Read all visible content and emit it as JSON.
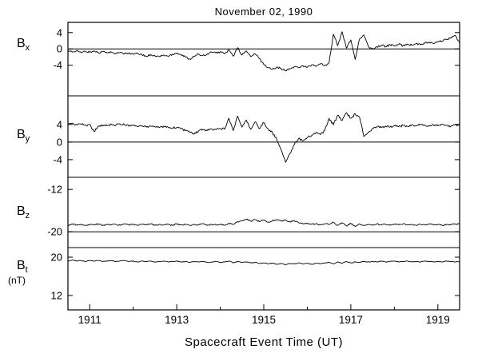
{
  "title": "November 02, 1990",
  "xlabel": "Spacecraft Event Time (UT)",
  "colors": {
    "line": "#000000",
    "background": "#ffffff"
  },
  "chart_data": {
    "type": "line",
    "title": "November 02, 1990",
    "xlabel": "Spacecraft Event Time (UT)",
    "grid": false,
    "legend": "none",
    "x": {
      "min": 1910.5,
      "max": 1919.5,
      "start": 1910.5,
      "step": 0.1
    },
    "xticks": [
      {
        "v": 1911,
        "label": "1911"
      },
      {
        "v": 1913,
        "label": "1913"
      },
      {
        "v": 1915,
        "label": "1915"
      },
      {
        "v": 1917,
        "label": "1917"
      },
      {
        "v": 1919,
        "label": "1919"
      }
    ],
    "xminor": [
      1912,
      1914,
      1916,
      1918
    ],
    "panels": [
      {
        "name": "Bx",
        "label_main": "B",
        "label_sub": "x",
        "unit_label": "",
        "ylim": [
          -11.5,
          6.5
        ],
        "yticks": [
          {
            "v": 4,
            "label": "4"
          },
          {
            "v": 0,
            "label": "0"
          },
          {
            "v": -4,
            "label": "-4"
          }
        ],
        "refline": 0,
        "noise": 0.25,
        "values": [
          -0.5,
          -0.8,
          -0.4,
          -0.9,
          -0.6,
          -0.8,
          -0.5,
          -0.9,
          -0.7,
          -1.0,
          -0.8,
          -1.1,
          -0.9,
          -1.2,
          -1.0,
          -1.3,
          -1.1,
          -1.5,
          -1.8,
          -1.4,
          -1.7,
          -1.9,
          -1.5,
          -1.8,
          -1.3,
          -1.0,
          -1.4,
          -2.0,
          -2.5,
          -1.8,
          -1.3,
          -1.6,
          -1.2,
          -0.8,
          -1.0,
          -0.7,
          -1.2,
          -0.3,
          -1.8,
          0.3,
          -1.5,
          -0.5,
          -1.9,
          -1.2,
          -2.4,
          -3.8,
          -4.6,
          -5.0,
          -4.4,
          -4.8,
          -5.4,
          -4.9,
          -4.3,
          -4.6,
          -4.1,
          -4.5,
          -3.9,
          -4.3,
          -3.7,
          -4.1,
          -3.4,
          3.6,
          0.8,
          4.2,
          0.2,
          2.2,
          -2.6,
          2.4,
          3.4,
          0.6,
          0.1,
          0.5,
          0.9,
          0.6,
          1.0,
          0.7,
          1.1,
          0.8,
          1.2,
          0.9,
          1.3,
          1.0,
          1.4,
          1.6,
          1.3,
          1.7,
          1.9,
          2.3,
          2.8,
          3.3,
          1.5
        ]
      },
      {
        "name": "By",
        "label_main": "B",
        "label_sub": "y",
        "unit_label": "",
        "ylim": [
          -8.0,
          10.5
        ],
        "yticks": [
          {
            "v": 4,
            "label": "4"
          },
          {
            "v": 0,
            "label": "0"
          },
          {
            "v": -4,
            "label": "-4"
          }
        ],
        "refline": 0,
        "noise": 0.25,
        "values": [
          4.0,
          4.3,
          3.9,
          4.1,
          3.8,
          4.0,
          2.4,
          3.6,
          3.9,
          3.7,
          4.0,
          3.8,
          4.1,
          3.9,
          3.6,
          3.8,
          3.5,
          3.7,
          3.4,
          3.6,
          3.5,
          3.3,
          3.6,
          3.4,
          3.2,
          3.3,
          3.0,
          2.6,
          2.2,
          1.8,
          2.5,
          2.9,
          2.6,
          3.0,
          2.8,
          3.1,
          2.9,
          5.4,
          2.6,
          5.9,
          3.4,
          5.0,
          2.9,
          4.6,
          3.1,
          4.4,
          3.0,
          2.1,
          0.6,
          -1.8,
          -4.6,
          -2.6,
          -0.6,
          0.8,
          0.3,
          1.0,
          1.5,
          2.1,
          1.7,
          2.6,
          5.4,
          3.9,
          6.1,
          4.9,
          6.7,
          5.4,
          6.4,
          5.7,
          1.3,
          2.1,
          3.1,
          3.5,
          3.3,
          3.6,
          3.4,
          3.7,
          3.5,
          3.8,
          3.6,
          3.9,
          3.7,
          4.0,
          3.8,
          3.6,
          3.9,
          3.7,
          4.0,
          3.8,
          3.6,
          3.9,
          3.7
        ]
      },
      {
        "name": "Bz",
        "label_main": "B",
        "label_sub": "z",
        "unit_label": "",
        "ylim": [
          -23.0,
          -9.7
        ],
        "yticks": [
          {
            "v": -12,
            "label": "-12"
          },
          {
            "v": -20,
            "label": "-20"
          }
        ],
        "refline": -20,
        "noise": 0.12,
        "values": [
          -18.8,
          -18.5,
          -18.7,
          -18.6,
          -18.8,
          -18.6,
          -18.7,
          -18.5,
          -18.8,
          -18.6,
          -18.7,
          -18.6,
          -18.8,
          -18.5,
          -18.7,
          -18.6,
          -18.8,
          -18.6,
          -18.7,
          -18.5,
          -18.8,
          -18.6,
          -18.7,
          -18.6,
          -18.8,
          -18.5,
          -18.7,
          -18.6,
          -18.8,
          -18.6,
          -18.7,
          -18.5,
          -18.8,
          -18.6,
          -18.7,
          -18.6,
          -18.8,
          -18.4,
          -18.6,
          -18.1,
          -17.9,
          -17.6,
          -18.0,
          -17.7,
          -18.1,
          -17.8,
          -18.2,
          -17.9,
          -17.7,
          -18.0,
          -17.8,
          -18.1,
          -17.9,
          -18.3,
          -18.5,
          -18.4,
          -18.6,
          -18.5,
          -18.7,
          -18.5,
          -18.6,
          -18.2,
          -18.8,
          -18.3,
          -18.9,
          -18.4,
          -19.0,
          -18.5,
          -18.8,
          -18.6,
          -18.7,
          -18.5,
          -18.7,
          -18.6,
          -18.8,
          -18.6,
          -18.7,
          -18.5,
          -18.7,
          -18.6,
          -18.8,
          -18.6,
          -18.7,
          -18.5,
          -18.7,
          -18.6,
          -18.8,
          -18.6,
          -18.7,
          -18.5,
          -18.6
        ]
      },
      {
        "name": "Bt",
        "label_main": "B",
        "label_sub": "t",
        "unit_label": "(nT)",
        "ylim": [
          9.0,
          22.0
        ],
        "yticks": [
          {
            "v": 20,
            "label": "20"
          },
          {
            "v": 12,
            "label": "12"
          }
        ],
        "refline": null,
        "noise": 0.07,
        "values": [
          19.2,
          19.4,
          19.2,
          19.3,
          19.1,
          19.3,
          19.2,
          19.3,
          19.1,
          19.2,
          19.3,
          19.1,
          19.2,
          19.3,
          19.1,
          19.2,
          19.0,
          19.2,
          19.1,
          19.2,
          19.0,
          19.1,
          19.2,
          19.0,
          19.1,
          19.2,
          19.0,
          19.1,
          18.9,
          19.1,
          19.0,
          19.1,
          18.9,
          19.0,
          19.1,
          18.9,
          19.0,
          19.2,
          18.8,
          19.1,
          18.9,
          19.0,
          18.8,
          18.9,
          18.7,
          18.8,
          18.6,
          18.8,
          18.5,
          18.7,
          18.4,
          18.7,
          18.6,
          18.8,
          18.6,
          18.7,
          18.5,
          18.7,
          18.6,
          18.8,
          18.9,
          18.6,
          19.0,
          18.7,
          19.1,
          18.8,
          19.0,
          18.9,
          19.1,
          19.0,
          19.1,
          19.0,
          19.2,
          19.0,
          19.1,
          19.2,
          19.0,
          19.1,
          19.2,
          19.0,
          19.1,
          19.0,
          19.2,
          19.1,
          19.0,
          19.1,
          19.0,
          19.2,
          19.1,
          19.0,
          19.1
        ]
      }
    ]
  }
}
